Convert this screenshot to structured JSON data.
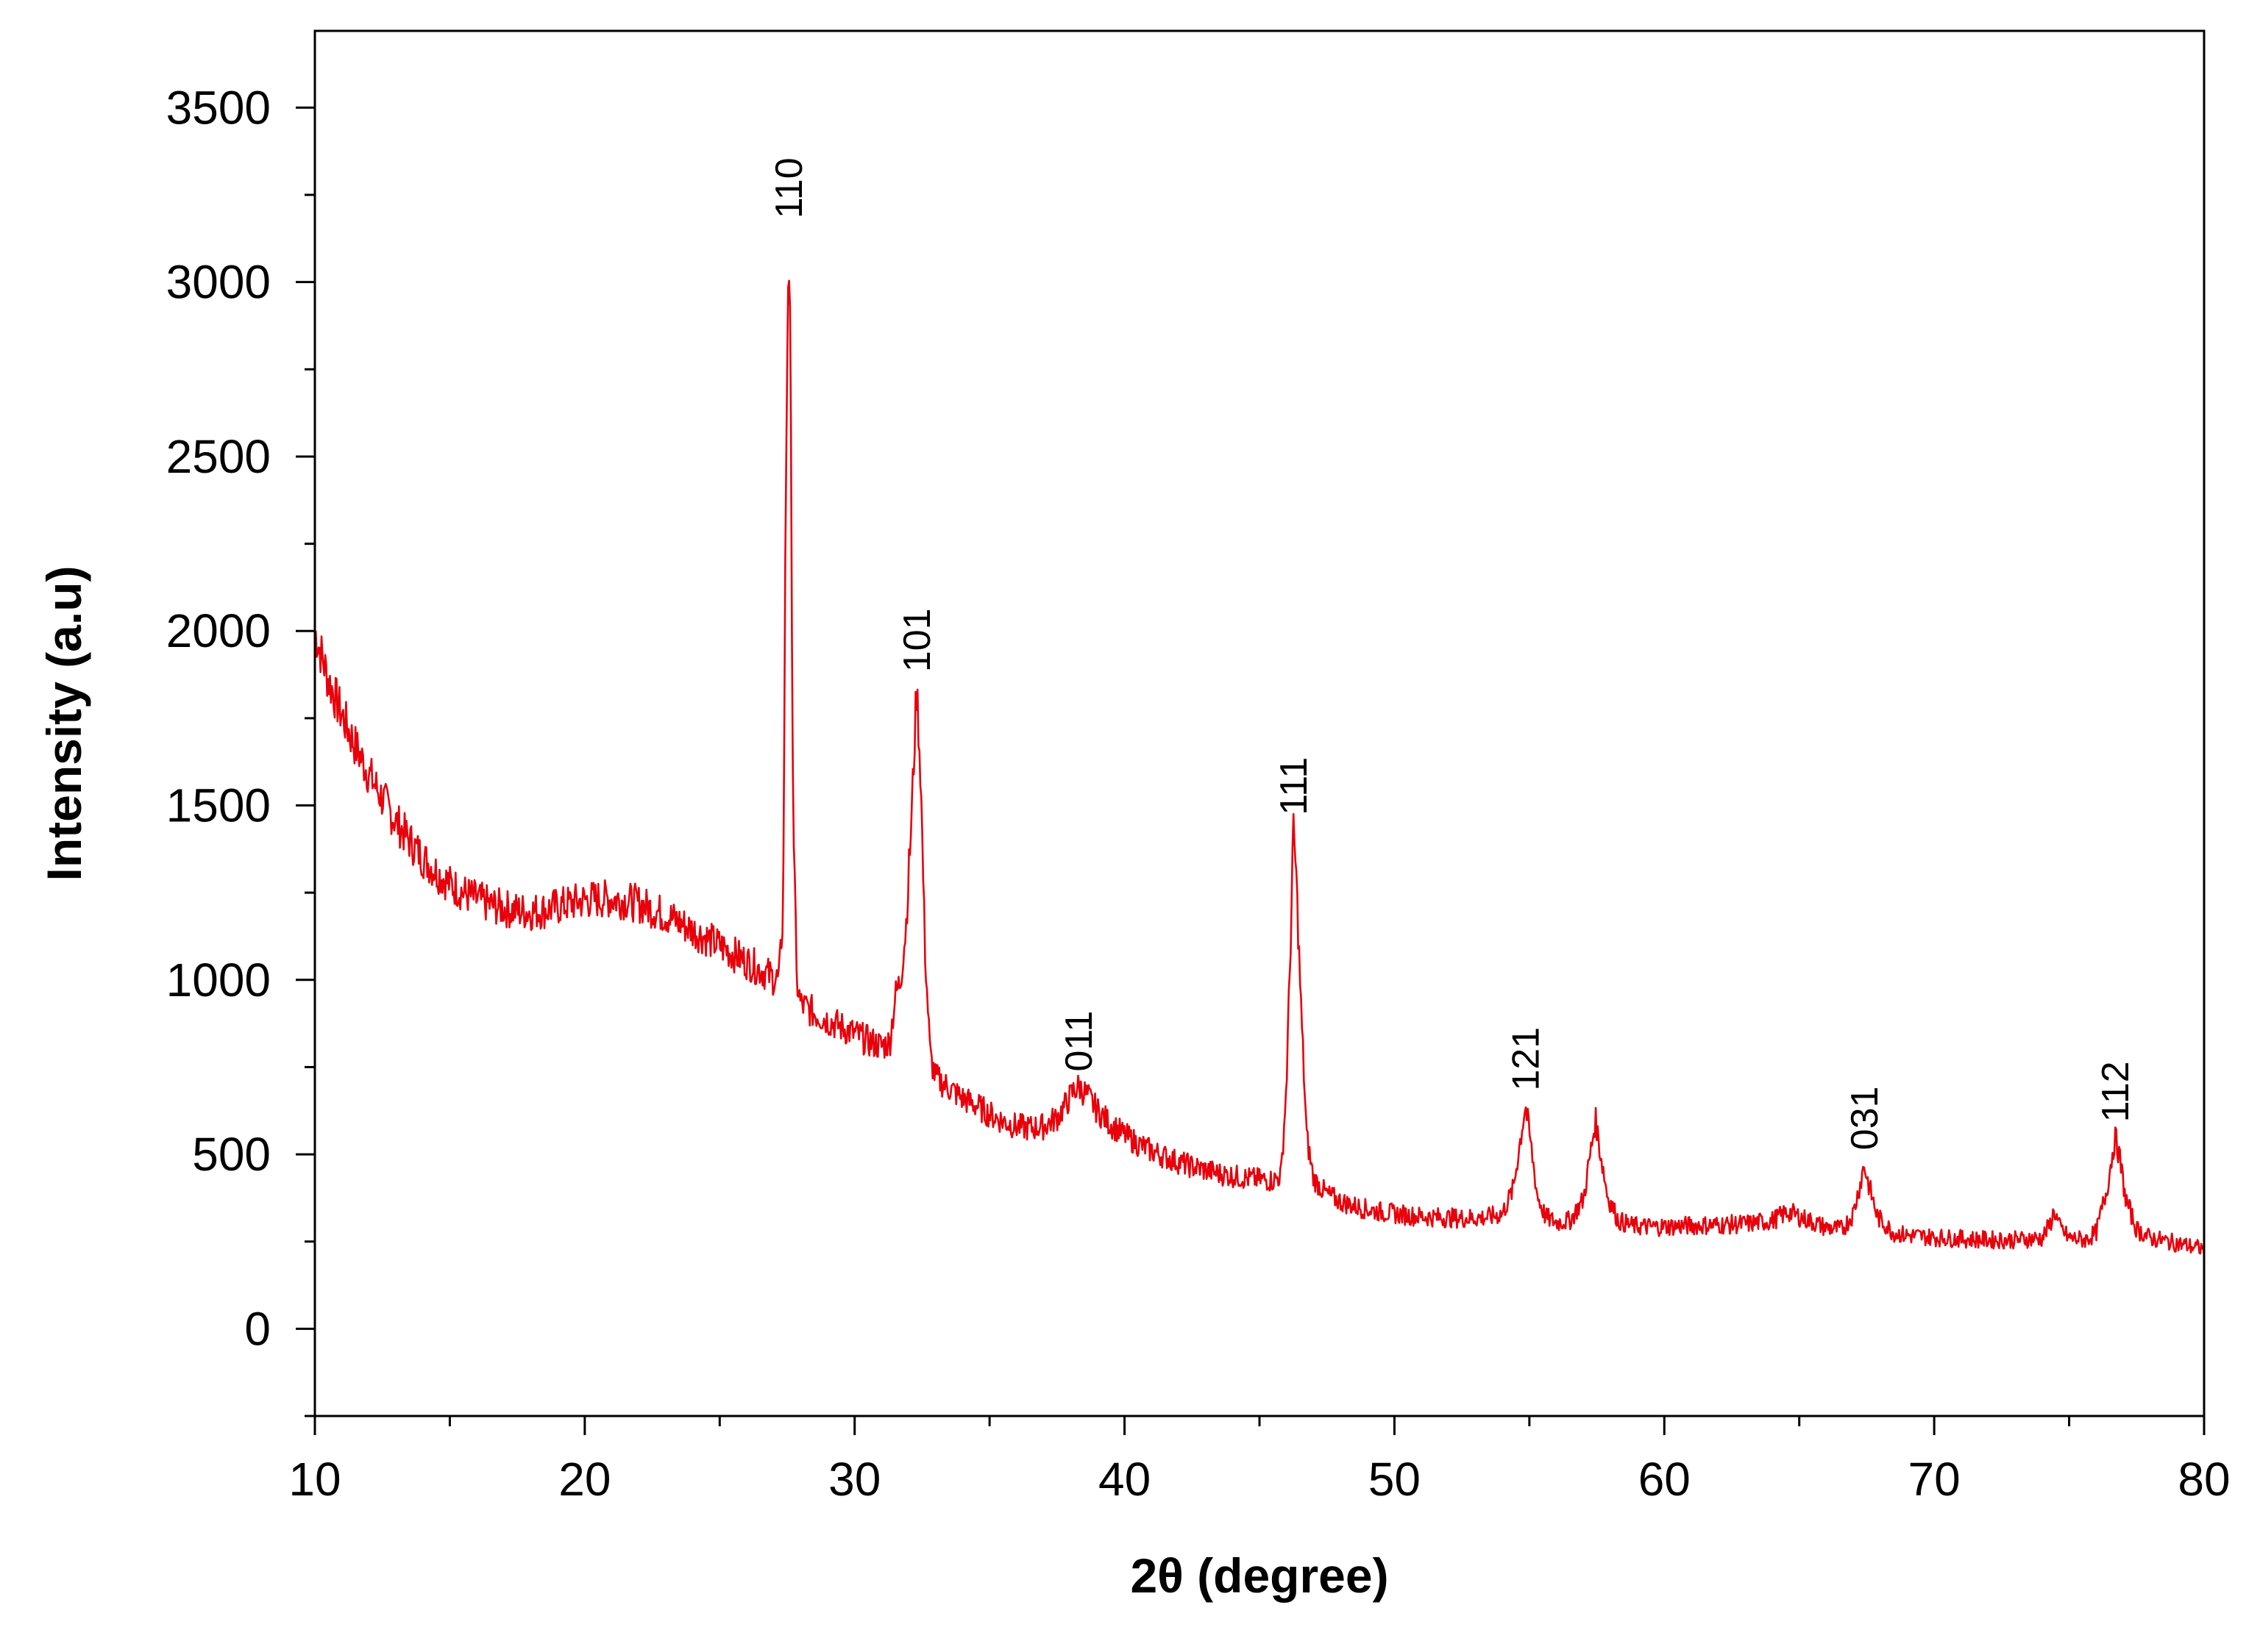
{
  "chart_data": {
    "type": "line",
    "title": "",
    "xlabel": "2θ (degree)",
    "ylabel": "Intensity (a.u)",
    "xlim": [
      10,
      80
    ],
    "ylim": [
      -250,
      3720
    ],
    "x_ticks": [
      10,
      20,
      30,
      40,
      50,
      60,
      70,
      80
    ],
    "y_ticks": [
      0,
      500,
      1000,
      1500,
      2000,
      2500,
      3000,
      3500
    ],
    "grid": false,
    "legend": "none",
    "line_color": "#e8000b",
    "series": [
      {
        "points": [
          [
            10.0,
            2000
          ],
          [
            10.5,
            1860
          ],
          [
            11.0,
            1760
          ],
          [
            11.5,
            1670
          ],
          [
            12.0,
            1590
          ],
          [
            12.5,
            1520
          ],
          [
            13.0,
            1455
          ],
          [
            13.5,
            1400
          ],
          [
            14.0,
            1350
          ],
          [
            14.5,
            1310
          ],
          [
            15.0,
            1275
          ],
          [
            15.5,
            1250
          ],
          [
            16.0,
            1230
          ],
          [
            16.5,
            1215
          ],
          [
            17.0,
            1205
          ],
          [
            17.5,
            1198
          ],
          [
            18.0,
            1195
          ],
          [
            18.5,
            1200
          ],
          [
            19.0,
            1210
          ],
          [
            19.5,
            1220
          ],
          [
            20.0,
            1228
          ],
          [
            20.5,
            1232
          ],
          [
            21.0,
            1232
          ],
          [
            21.5,
            1228
          ],
          [
            22.0,
            1218
          ],
          [
            22.5,
            1202
          ],
          [
            23.0,
            1185
          ],
          [
            23.5,
            1165
          ],
          [
            24.0,
            1142
          ],
          [
            24.5,
            1120
          ],
          [
            25.0,
            1098
          ],
          [
            25.5,
            1075
          ],
          [
            26.0,
            1052
          ],
          [
            26.5,
            1030
          ],
          [
            27.0,
            1005
          ],
          [
            27.2,
            1000
          ],
          [
            27.35,
            1200
          ],
          [
            27.45,
            2400
          ],
          [
            27.55,
            3140
          ],
          [
            27.62,
            2780
          ],
          [
            27.72,
            1500
          ],
          [
            27.85,
            1000
          ],
          [
            28.0,
            930
          ],
          [
            28.5,
            905
          ],
          [
            29.0,
            885
          ],
          [
            29.5,
            865
          ],
          [
            30.0,
            845
          ],
          [
            30.5,
            825
          ],
          [
            31.0,
            810
          ],
          [
            31.3,
            820
          ],
          [
            31.5,
            950
          ],
          [
            31.7,
            1000
          ],
          [
            31.9,
            1150
          ],
          [
            32.1,
            1450
          ],
          [
            32.3,
            1840
          ],
          [
            32.45,
            1580
          ],
          [
            32.6,
            1100
          ],
          [
            32.8,
            780
          ],
          [
            33.0,
            720
          ],
          [
            33.5,
            690
          ],
          [
            34.0,
            660
          ],
          [
            34.5,
            640
          ],
          [
            35.0,
            615
          ],
          [
            35.5,
            595
          ],
          [
            36.0,
            580
          ],
          [
            36.5,
            575
          ],
          [
            37.0,
            580
          ],
          [
            37.5,
            605
          ],
          [
            37.8,
            640
          ],
          [
            38.1,
            680
          ],
          [
            38.3,
            695
          ],
          [
            38.6,
            670
          ],
          [
            39.0,
            625
          ],
          [
            39.5,
            585
          ],
          [
            40.0,
            555
          ],
          [
            40.5,
            530
          ],
          [
            41.0,
            510
          ],
          [
            41.5,
            493
          ],
          [
            42.0,
            478
          ],
          [
            42.5,
            465
          ],
          [
            43.0,
            455
          ],
          [
            43.5,
            445
          ],
          [
            44.0,
            438
          ],
          [
            44.5,
            432
          ],
          [
            45.0,
            428
          ],
          [
            45.5,
            425
          ],
          [
            45.8,
            440
          ],
          [
            46.0,
            700
          ],
          [
            46.15,
            1100
          ],
          [
            46.25,
            1430
          ],
          [
            46.35,
            1320
          ],
          [
            46.55,
            900
          ],
          [
            46.75,
            550
          ],
          [
            47.0,
            430
          ],
          [
            47.5,
            385
          ],
          [
            48.0,
            365
          ],
          [
            48.5,
            352
          ],
          [
            49.0,
            342
          ],
          [
            49.5,
            335
          ],
          [
            50.0,
            330
          ],
          [
            50.5,
            325
          ],
          [
            51.0,
            322
          ],
          [
            51.5,
            320
          ],
          [
            52.0,
            318
          ],
          [
            52.5,
            317
          ],
          [
            53.0,
            318
          ],
          [
            53.5,
            320
          ],
          [
            54.0,
            330
          ],
          [
            54.4,
            400
          ],
          [
            54.7,
            560
          ],
          [
            54.85,
            640
          ],
          [
            55.0,
            560
          ],
          [
            55.3,
            380
          ],
          [
            55.6,
            320
          ],
          [
            56.0,
            305
          ],
          [
            56.5,
            310
          ],
          [
            57.0,
            370
          ],
          [
            57.3,
            520
          ],
          [
            57.45,
            600
          ],
          [
            57.6,
            520
          ],
          [
            57.9,
            380
          ],
          [
            58.3,
            310
          ],
          [
            58.8,
            295
          ],
          [
            59.5,
            292
          ],
          [
            60.0,
            293
          ],
          [
            61.0,
            296
          ],
          [
            62.0,
            298
          ],
          [
            63.0,
            300
          ],
          [
            64.0,
            310
          ],
          [
            64.6,
            335
          ],
          [
            65.2,
            315
          ],
          [
            66.0,
            290
          ],
          [
            66.6,
            285
          ],
          [
            67.0,
            330
          ],
          [
            67.3,
            430
          ],
          [
            67.4,
            470
          ],
          [
            67.55,
            420
          ],
          [
            67.9,
            320
          ],
          [
            68.5,
            275
          ],
          [
            69.0,
            268
          ],
          [
            70.0,
            262
          ],
          [
            71.0,
            258
          ],
          [
            72.0,
            255
          ],
          [
            73.0,
            255
          ],
          [
            74.0,
            260
          ],
          [
            74.3,
            300
          ],
          [
            74.45,
            340
          ],
          [
            74.65,
            290
          ],
          [
            75.0,
            260
          ],
          [
            75.6,
            255
          ],
          [
            76.0,
            275
          ],
          [
            76.4,
            400
          ],
          [
            76.7,
            550
          ],
          [
            76.85,
            500
          ],
          [
            77.1,
            370
          ],
          [
            77.5,
            285
          ],
          [
            78.0,
            260
          ],
          [
            79.0,
            245
          ],
          [
            80.0,
            228
          ]
        ]
      }
    ],
    "annotations": [
      {
        "text": "110",
        "x": 27.55,
        "y": 3140
      },
      {
        "text": "101",
        "x": 32.3,
        "y": 1840
      },
      {
        "text": "011",
        "x": 38.3,
        "y": 695
      },
      {
        "text": "111",
        "x": 46.25,
        "y": 1430
      },
      {
        "text": "121",
        "x": 54.85,
        "y": 640
      },
      {
        "text": "031",
        "x": 67.4,
        "y": 470
      },
      {
        "text": "112",
        "x": 76.7,
        "y": 550
      }
    ]
  }
}
